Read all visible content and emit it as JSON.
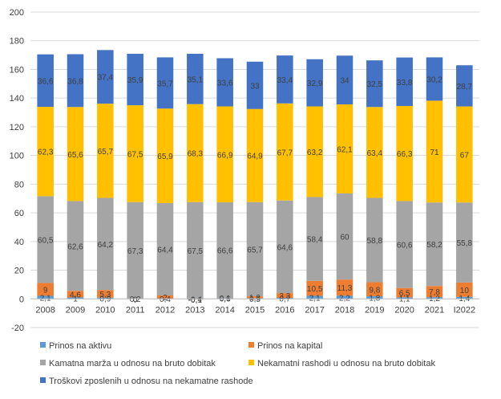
{
  "chart_data": {
    "type": "bar",
    "stacked": true,
    "title": "",
    "xlabel": "",
    "ylabel": "",
    "ylim": [
      -20,
      200
    ],
    "yticks": [
      -20,
      0,
      20,
      40,
      60,
      80,
      100,
      120,
      140,
      160,
      180,
      200
    ],
    "grid": true,
    "legend_position": "bottom",
    "categories": [
      "2008",
      "2009",
      "2010",
      "2011",
      "2012",
      "2013",
      "2014",
      "2015",
      "2016",
      "2017",
      "2018",
      "2019",
      "2020",
      "2021",
      "I2022"
    ],
    "series": [
      {
        "name": "Prinos na aktivu",
        "color": "#5b9bd5",
        "values": [
          2.1,
          1.0,
          0.9,
          0.0,
          0.4,
          -0.4,
          0.6,
          0.5,
          0.7,
          2.1,
          2.2,
          1.8,
          1.1,
          1.2,
          1.4
        ],
        "labels": [
          "2,1",
          "1",
          "0,9",
          "0",
          "0,4",
          "-0,4",
          "0,6",
          "0,5",
          "0,7",
          "2,1",
          "2,2",
          "1,8",
          "1,1",
          "1,2",
          "1,4"
        ]
      },
      {
        "name": "Prinos na kapital",
        "color": "#ed7d31",
        "values": [
          9.0,
          4.6,
          5.3,
          0.2,
          2.0,
          -0.1,
          0.1,
          1.3,
          3.3,
          10.5,
          11.3,
          9.8,
          6.5,
          7.8,
          10.0
        ],
        "labels": [
          "9",
          "4,6",
          "5,3",
          "0,2",
          "2",
          "-0,1",
          "0,1",
          "1,3",
          "3,3",
          "10,5",
          "11,3",
          "9,8",
          "6,5",
          "7,8",
          "10"
        ]
      },
      {
        "name": "Kamatna marža u odnosu na bruto dobitak",
        "color": "#a5a5a5",
        "values": [
          60.5,
          62.6,
          64.2,
          67.3,
          64.4,
          67.5,
          66.6,
          65.7,
          64.6,
          58.4,
          60.0,
          58.8,
          60.6,
          58.2,
          55.8
        ],
        "labels": [
          "60,5",
          "62,6",
          "64,2",
          "67,3",
          "64,4",
          "67,5",
          "66,6",
          "65,7",
          "64,6",
          "58,4",
          "60",
          "58,8",
          "60,6",
          "58,2",
          "55,8"
        ]
      },
      {
        "name": "Nekamatni rashodi u odnosu na bruto dobitak",
        "color": "#ffc000",
        "values": [
          62.3,
          65.6,
          65.7,
          67.5,
          65.9,
          68.3,
          66.9,
          64.9,
          67.7,
          63.2,
          62.1,
          63.4,
          66.3,
          71.0,
          67.0
        ],
        "labels": [
          "62,3",
          "65,6",
          "65,7",
          "67,5",
          "65,9",
          "68,3",
          "66,9",
          "64,9",
          "67,7",
          "63,2",
          "62,1",
          "63,4",
          "66,3",
          "71",
          "67"
        ]
      },
      {
        "name": "Troškovi zposlenih u odnosu na nekamatne rashode",
        "color": "#4472c4",
        "values": [
          36.6,
          36.8,
          37.4,
          35.9,
          35.7,
          35.1,
          33.6,
          33.0,
          33.4,
          32.9,
          34.0,
          32.5,
          33.8,
          30.2,
          28.7
        ],
        "labels": [
          "36,6",
          "36,8",
          "37,4",
          "35,9",
          "35,7",
          "35,1",
          "33,6",
          "33",
          "33,4",
          "32,9",
          "34",
          "32,5",
          "33,8",
          "30,2",
          "28,7"
        ]
      }
    ]
  }
}
